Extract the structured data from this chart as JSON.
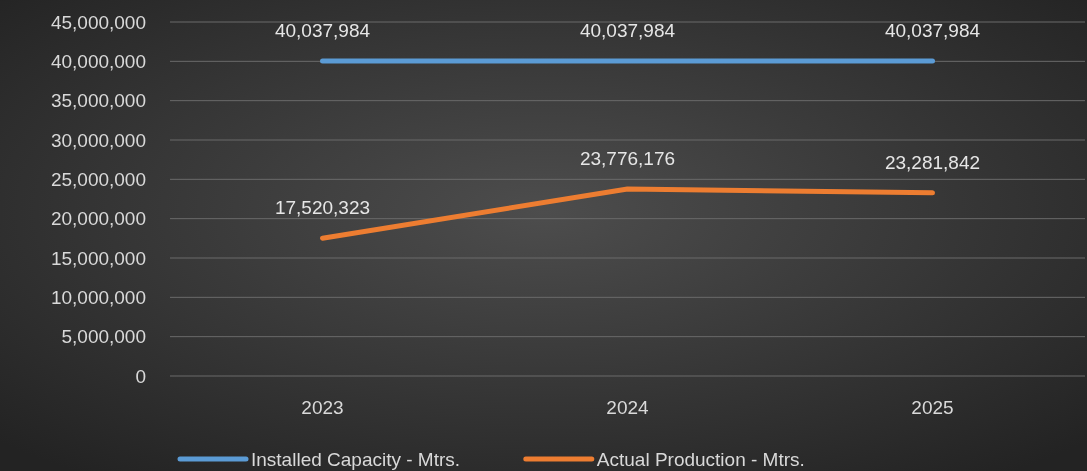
{
  "chart_data": {
    "type": "line",
    "categories": [
      "2023",
      "2024",
      "2025"
    ],
    "series": [
      {
        "name": "Installed Capacity - Mtrs.",
        "color": "#5b9bd5",
        "values": [
          40037984,
          40037984,
          40037984
        ],
        "value_labels": [
          "40,037,984",
          "40,037,984",
          "40,037,984"
        ]
      },
      {
        "name": "Actual Production - Mtrs.",
        "color": "#ed7d31",
        "values": [
          17520323,
          23776176,
          23281842
        ],
        "value_labels": [
          "17,520,323",
          "23,776,176",
          "23,281,842"
        ]
      }
    ],
    "ylim": [
      0,
      45000000
    ],
    "yticks": [
      {
        "value": 0,
        "label": "0"
      },
      {
        "value": 5000000,
        "label": "5,000,000"
      },
      {
        "value": 10000000,
        "label": "10,000,000"
      },
      {
        "value": 15000000,
        "label": "15,000,000"
      },
      {
        "value": 20000000,
        "label": "20,000,000"
      },
      {
        "value": 25000000,
        "label": "25,000,000"
      },
      {
        "value": 30000000,
        "label": "30,000,000"
      },
      {
        "value": 35000000,
        "label": "35,000,000"
      },
      {
        "value": 40000000,
        "label": "40,000,000"
      },
      {
        "value": 45000000,
        "label": "45,000,000"
      }
    ],
    "grid": "y",
    "legend": "bottom",
    "marker": "none",
    "line_style": "solid"
  }
}
